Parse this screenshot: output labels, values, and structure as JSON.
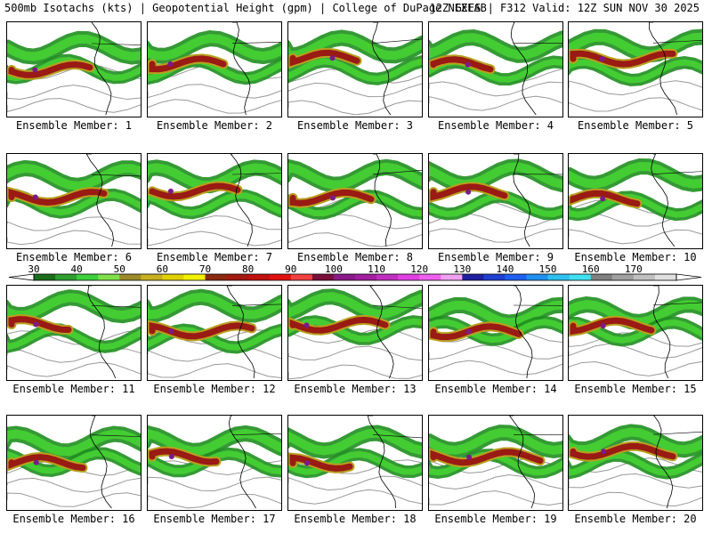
{
  "header": {
    "left": "500mb Isotachs (kts) | Geopotential Height (gpm) | College of DuPage NEXLAB",
    "right": "12Z GEFS | F312 Valid: 12Z SUN NOV 30 2025"
  },
  "members": [
    {
      "label": "Ensemble Member: 1"
    },
    {
      "label": "Ensemble Member: 2"
    },
    {
      "label": "Ensemble Member: 3"
    },
    {
      "label": "Ensemble Member: 4"
    },
    {
      "label": "Ensemble Member: 5"
    },
    {
      "label": "Ensemble Member: 6"
    },
    {
      "label": "Ensemble Member: 7"
    },
    {
      "label": "Ensemble Member: 8"
    },
    {
      "label": "Ensemble Member: 9"
    },
    {
      "label": "Ensemble Member: 10"
    },
    {
      "label": "Ensemble Member: 11"
    },
    {
      "label": "Ensemble Member: 12"
    },
    {
      "label": "Ensemble Member: 13"
    },
    {
      "label": "Ensemble Member: 14"
    },
    {
      "label": "Ensemble Member: 15"
    },
    {
      "label": "Ensemble Member: 16"
    },
    {
      "label": "Ensemble Member: 17"
    },
    {
      "label": "Ensemble Member: 18"
    },
    {
      "label": "Ensemble Member: 19"
    },
    {
      "label": "Ensemble Member: 20"
    }
  ],
  "colorbar": {
    "tick_labels": [
      "30",
      "40",
      "50",
      "60",
      "70",
      "80",
      "90",
      "100",
      "110",
      "120",
      "130",
      "140",
      "150",
      "160",
      "170"
    ],
    "colors": [
      "#1b6e1b",
      "#2f9e2f",
      "#3ecf3e",
      "#7fe04a",
      "#9c8a2a",
      "#c8b020",
      "#e0d000",
      "#f2f200",
      "#8b2a10",
      "#a31a10",
      "#c01010",
      "#e01010",
      "#f04040",
      "#7a0f3a",
      "#8a1a8a",
      "#a020a0",
      "#c030c0",
      "#e040e0",
      "#f060f0",
      "#f0a0f0",
      "#2020a0",
      "#2040d0",
      "#2060f0",
      "#2090f0",
      "#30c0f0",
      "#40e0f0",
      "#808080",
      "#a0a0a0",
      "#c0c0c0",
      "#e0e0e0"
    ]
  },
  "map_style": {
    "jet_weak": "#1f8f1f",
    "jet_mid": "#44cc33",
    "jet_core_low": "#b8a020",
    "jet_core": "#9a1a14",
    "jet_max": "#7a1a8a",
    "coast": "#000000",
    "height_contour": "#999999"
  }
}
